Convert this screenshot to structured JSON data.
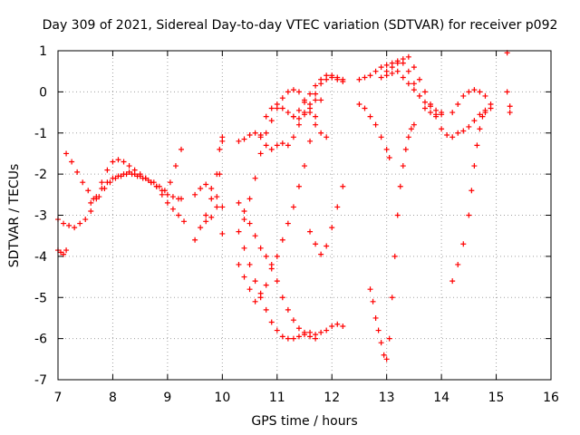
{
  "chart_data": {
    "type": "scatter",
    "title": "Day 309 of 2021, Sidereal Day-to-day VTEC variation (SDTVAR) for receiver p092",
    "xlabel": "GPS time / hours",
    "ylabel": "SDTVAR / TECUs",
    "xlim": [
      7,
      16
    ],
    "ylim": [
      -7,
      1
    ],
    "xticks": [
      "7",
      "8",
      "9",
      "10",
      "11",
      "12",
      "13",
      "14",
      "15",
      "16"
    ],
    "yticks": [
      "1",
      "0",
      "-1",
      "-2",
      "-3",
      "-4",
      "-5",
      "-6",
      "-7"
    ],
    "grid": true,
    "marker": "plus",
    "series": [
      {
        "name": "s1",
        "color": "#ff0000",
        "x": [
          7.0,
          7.1,
          7.2,
          7.3,
          7.4,
          7.5,
          7.6,
          7.7,
          7.8,
          7.9,
          8.0,
          8.1,
          8.2,
          8.3,
          8.4,
          8.5,
          8.6,
          8.7,
          8.8,
          8.9,
          9.0,
          9.1,
          9.2,
          9.25
        ],
        "y": [
          -3.1,
          -3.2,
          -3.25,
          -3.3,
          -3.2,
          -3.1,
          -2.9,
          -2.6,
          -2.2,
          -1.9,
          -1.7,
          -1.65,
          -1.7,
          -1.8,
          -1.9,
          -2.0,
          -2.1,
          -2.2,
          -2.3,
          -2.4,
          -2.5,
          -2.55,
          -2.6,
          -2.6
        ]
      },
      {
        "name": "s2",
        "color": "#ff0000",
        "x": [
          7.15,
          7.25,
          7.35,
          7.45,
          7.55,
          7.65,
          7.75,
          7.85,
          7.95,
          8.05,
          8.15,
          8.25,
          8.35,
          8.45,
          8.55,
          8.65,
          8.75,
          8.85,
          8.95,
          9.05,
          9.15,
          9.25
        ],
        "y": [
          -1.5,
          -1.7,
          -1.95,
          -2.2,
          -2.4,
          -2.6,
          -2.55,
          -2.35,
          -2.2,
          -2.1,
          -2.05,
          -2.0,
          -2.0,
          -2.05,
          -2.1,
          -2.15,
          -2.2,
          -2.3,
          -2.4,
          -2.2,
          -1.8,
          -1.4
        ]
      },
      {
        "name": "s3",
        "color": "#ff0000",
        "x": [
          7.6,
          7.7,
          7.8,
          7.9,
          8.0,
          8.1,
          8.2,
          8.3,
          8.4,
          8.5,
          8.6,
          8.7,
          8.8,
          8.9,
          9.0,
          9.1,
          9.2,
          9.3
        ],
        "y": [
          -2.7,
          -2.55,
          -2.35,
          -2.2,
          -2.1,
          -2.05,
          -2.0,
          -1.95,
          -2.0,
          -2.05,
          -2.1,
          -2.2,
          -2.3,
          -2.5,
          -2.7,
          -2.85,
          -3.0,
          -3.15
        ]
      },
      {
        "name": "s4",
        "color": "#ff0000",
        "x": [
          7.0,
          7.05,
          7.1,
          7.15
        ],
        "y": [
          -3.85,
          -3.9,
          -3.95,
          -3.85
        ]
      },
      {
        "name": "s5",
        "color": "#ff0000",
        "x": [
          9.5,
          9.6,
          9.7,
          9.8,
          9.9,
          9.95,
          10.0
        ],
        "y": [
          -3.6,
          -3.3,
          -3.0,
          -2.6,
          -2.0,
          -1.4,
          -1.1
        ]
      },
      {
        "name": "s6",
        "color": "#ff0000",
        "x": [
          9.5,
          9.6,
          9.7,
          9.8,
          9.9,
          10.0
        ],
        "y": [
          -2.5,
          -2.35,
          -2.25,
          -2.35,
          -2.55,
          -2.8
        ]
      },
      {
        "name": "s7",
        "color": "#ff0000",
        "x": [
          9.7,
          9.8,
          9.9,
          9.95,
          10.0
        ],
        "y": [
          -3.15,
          -3.05,
          -2.8,
          -2.0,
          -1.2
        ]
      },
      {
        "name": "s8",
        "color": "#ff0000",
        "x": [
          10.0
        ],
        "y": [
          -3.45
        ]
      },
      {
        "name": "s9",
        "color": "#ff0000",
        "x": [
          10.3,
          10.4,
          10.5,
          10.6,
          10.7,
          10.8,
          10.9,
          11.0,
          11.1,
          11.2,
          11.3,
          11.4,
          11.5,
          11.6,
          11.7,
          11.8,
          11.9,
          12.0,
          12.1,
          12.2
        ],
        "y": [
          -3.4,
          -3.8,
          -4.2,
          -4.6,
          -4.9,
          -5.3,
          -5.6,
          -5.8,
          -5.95,
          -6.0,
          -6.0,
          -5.95,
          -5.9,
          -5.85,
          -5.9,
          -5.85,
          -5.8,
          -5.7,
          -5.65,
          -5.7
        ]
      },
      {
        "name": "s10",
        "color": "#ff0000",
        "x": [
          10.3,
          10.4,
          10.5,
          10.6,
          10.7,
          10.8,
          10.9,
          11.0,
          11.1,
          11.2,
          11.3,
          11.4,
          11.5,
          11.6,
          11.7
        ],
        "y": [
          -2.7,
          -2.9,
          -3.2,
          -3.5,
          -3.8,
          -4.0,
          -4.2,
          -4.6,
          -5.0,
          -5.3,
          -5.55,
          -5.75,
          -5.85,
          -5.95,
          -6.0
        ]
      },
      {
        "name": "s11",
        "color": "#ff0000",
        "x": [
          10.3,
          10.4,
          10.5,
          10.6,
          10.7,
          10.8,
          10.9,
          11.0,
          11.1,
          11.2,
          11.3,
          11.4,
          11.5,
          11.6,
          11.7,
          11.8
        ],
        "y": [
          -4.2,
          -4.5,
          -4.8,
          -5.1,
          -5.0,
          -4.7,
          -4.3,
          -4.0,
          -3.6,
          -3.2,
          -2.8,
          -2.3,
          -1.8,
          -1.2,
          -0.6,
          -0.2
        ]
      },
      {
        "name": "s12",
        "color": "#ff0000",
        "x": [
          10.4,
          10.5,
          10.6,
          10.7,
          10.8,
          10.9,
          11.0,
          11.1,
          11.2,
          11.3,
          11.4,
          11.5,
          11.6,
          11.7,
          11.8,
          11.9
        ],
        "y": [
          -3.1,
          -2.6,
          -2.1,
          -1.5,
          -1.0,
          -0.7,
          -0.4,
          -0.15,
          0.0,
          0.05,
          0.0,
          -0.2,
          -0.5,
          -0.8,
          -1.0,
          -1.1
        ]
      },
      {
        "name": "s13",
        "color": "#ff0000",
        "x": [
          10.3,
          10.4,
          10.5,
          10.6,
          10.7,
          10.8,
          10.9,
          11.0,
          11.1,
          11.2,
          11.3,
          11.4,
          11.5,
          11.6,
          11.7,
          11.8,
          11.9,
          12.0,
          12.1,
          12.2
        ],
        "y": [
          -1.2,
          -1.15,
          -1.05,
          -1.0,
          -1.1,
          -1.3,
          -1.4,
          -1.3,
          -1.25,
          -1.3,
          -1.1,
          -0.8,
          -0.5,
          -0.3,
          -0.05,
          0.2,
          0.3,
          0.35,
          0.3,
          0.25
        ]
      },
      {
        "name": "s14",
        "color": "#ff0000",
        "x": [
          10.7,
          10.8,
          10.9,
          11.0,
          11.1,
          11.2,
          11.3,
          11.4,
          11.5,
          11.6,
          11.7
        ],
        "y": [
          -1.05,
          -0.6,
          -0.4,
          -0.3,
          -0.4,
          -0.5,
          -0.6,
          -0.65,
          -0.55,
          -0.4,
          -0.2
        ]
      },
      {
        "name": "s15",
        "color": "#ff0000",
        "x": [
          11.3,
          11.4,
          11.5,
          11.6,
          11.7,
          11.8,
          11.9,
          12.0,
          12.1,
          12.2
        ],
        "y": [
          -0.6,
          -0.45,
          -0.25,
          -0.05,
          0.15,
          0.3,
          0.4,
          0.4,
          0.35,
          0.3
        ]
      },
      {
        "name": "s16",
        "color": "#ff0000",
        "x": [
          11.6,
          11.7,
          11.8,
          11.9,
          12.0,
          12.1,
          12.2
        ],
        "y": [
          -3.4,
          -3.7,
          -3.95,
          -3.75,
          -3.3,
          -2.8,
          -2.3
        ]
      },
      {
        "name": "s17",
        "color": "#ff0000",
        "x": [
          12.5,
          12.6,
          12.7,
          12.8,
          12.9,
          13.0,
          13.1,
          13.2,
          13.3,
          13.4,
          13.5,
          13.6,
          13.7,
          13.8,
          13.9,
          14.0
        ],
        "y": [
          0.3,
          0.35,
          0.4,
          0.5,
          0.6,
          0.65,
          0.7,
          0.75,
          0.7,
          0.5,
          0.2,
          -0.1,
          -0.4,
          -0.5,
          -0.55,
          -0.5
        ]
      },
      {
        "name": "s18",
        "color": "#ff0000",
        "x": [
          12.5,
          12.6,
          12.7,
          12.8,
          12.9,
          13.0,
          13.05
        ],
        "y": [
          -0.3,
          -0.4,
          -0.6,
          -0.8,
          -1.1,
          -1.4,
          -1.6
        ]
      },
      {
        "name": "s19",
        "color": "#ff0000",
        "x": [
          12.9,
          13.0,
          13.1,
          13.2,
          13.3,
          13.4,
          13.5,
          13.6,
          13.7,
          13.8,
          13.9,
          14.0
        ],
        "y": [
          0.35,
          0.5,
          0.6,
          0.7,
          0.8,
          0.85,
          0.6,
          0.3,
          0.0,
          -0.3,
          -0.6,
          -0.9
        ]
      },
      {
        "name": "s20",
        "color": "#ff0000",
        "x": [
          13.0,
          13.1,
          13.2,
          13.3,
          13.4,
          13.5,
          13.6,
          13.7,
          13.8,
          13.9,
          14.0
        ],
        "y": [
          0.4,
          0.45,
          0.5,
          0.35,
          0.2,
          0.05,
          -0.1,
          -0.25,
          -0.35,
          -0.45,
          -0.55
        ]
      },
      {
        "name": "s21",
        "color": "#ff0000",
        "x": [
          12.7,
          12.75,
          12.8,
          12.85,
          12.9,
          12.95,
          13.0,
          13.05,
          13.1,
          13.15,
          13.2,
          13.25,
          13.3,
          13.35,
          13.4,
          13.45,
          13.5
        ],
        "y": [
          -4.8,
          -5.1,
          -5.5,
          -5.8,
          -6.1,
          -6.4,
          -6.5,
          -6.0,
          -5.0,
          -4.0,
          -3.0,
          -2.3,
          -1.8,
          -1.4,
          -1.1,
          -0.9,
          -0.8
        ]
      },
      {
        "name": "s22",
        "color": "#ff0000",
        "x": [
          14.1,
          14.2,
          14.3,
          14.4,
          14.5,
          14.6,
          14.7,
          14.8,
          14.9
        ],
        "y": [
          -1.05,
          -1.1,
          -1.0,
          -0.95,
          -0.85,
          -0.7,
          -0.55,
          -0.45,
          -0.4
        ]
      },
      {
        "name": "s23",
        "color": "#ff0000",
        "x": [
          14.2,
          14.3,
          14.4,
          14.5,
          14.6,
          14.7,
          14.8,
          14.9
        ],
        "y": [
          -0.5,
          -0.3,
          -0.1,
          0.0,
          0.05,
          0.0,
          -0.1,
          -0.3
        ]
      },
      {
        "name": "s24",
        "color": "#ff0000",
        "x": [
          14.2,
          14.3,
          14.4,
          14.5,
          14.55,
          14.6,
          14.65,
          14.7,
          14.75,
          14.8
        ],
        "y": [
          -4.6,
          -4.2,
          -3.7,
          -3.0,
          -2.4,
          -1.8,
          -1.3,
          -0.9,
          -0.6,
          -0.5
        ]
      },
      {
        "name": "s25",
        "color": "#ff0000",
        "x": [
          15.2,
          15.2,
          15.25,
          15.25
        ],
        "y": [
          0.95,
          0.0,
          -0.35,
          -0.5
        ]
      }
    ]
  }
}
